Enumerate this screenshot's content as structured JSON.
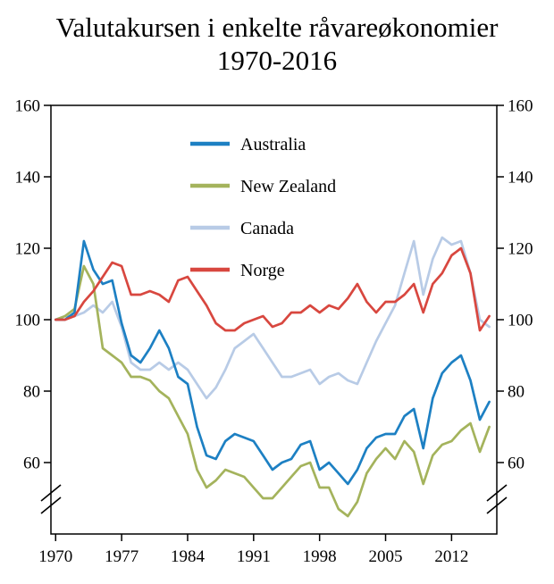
{
  "title": {
    "line1": "Valutakursen i enkelte råvareøkonomier",
    "line2": "1970-2016"
  },
  "chart_data": {
    "type": "line",
    "title": "Valutakursen i enkelte råvareøkonomier 1970-2016",
    "x": [
      1970,
      1971,
      1972,
      1973,
      1974,
      1975,
      1976,
      1977,
      1978,
      1979,
      1980,
      1981,
      1982,
      1983,
      1984,
      1985,
      1986,
      1987,
      1988,
      1989,
      1990,
      1991,
      1992,
      1993,
      1994,
      1995,
      1996,
      1997,
      1998,
      1999,
      2000,
      2001,
      2002,
      2003,
      2004,
      2005,
      2006,
      2007,
      2008,
      2009,
      2010,
      2011,
      2012,
      2013,
      2014,
      2015,
      2016
    ],
    "series": [
      {
        "name": "Australia",
        "color": "#1d80c3",
        "values": [
          100,
          100,
          102,
          122,
          114,
          110,
          111,
          99,
          90,
          88,
          92,
          97,
          92,
          84,
          82,
          70,
          62,
          61,
          66,
          68,
          67,
          66,
          62,
          58,
          60,
          61,
          65,
          66,
          58,
          60,
          57,
          54,
          58,
          64,
          67,
          68,
          68,
          73,
          75,
          64,
          78,
          85,
          88,
          90,
          83,
          72,
          77
        ]
      },
      {
        "name": "New Zealand",
        "color": "#a4b35c",
        "values": [
          100,
          101,
          103,
          115,
          110,
          92,
          90,
          88,
          84,
          84,
          83,
          80,
          78,
          73,
          68,
          58,
          53,
          55,
          58,
          57,
          56,
          53,
          50,
          50,
          53,
          56,
          59,
          60,
          53,
          53,
          47,
          45,
          49,
          57,
          61,
          64,
          61,
          66,
          63,
          54,
          62,
          65,
          66,
          69,
          71,
          63,
          70
        ]
      },
      {
        "name": "Canada",
        "color": "#b8cbe6",
        "values": [
          100,
          101,
          101,
          102,
          104,
          102,
          105,
          98,
          88,
          86,
          86,
          88,
          86,
          88,
          86,
          82,
          78,
          81,
          86,
          92,
          94,
          96,
          92,
          88,
          84,
          84,
          85,
          86,
          82,
          84,
          85,
          83,
          82,
          88,
          94,
          99,
          104,
          113,
          122,
          107,
          117,
          123,
          121,
          122,
          113,
          100,
          98
        ]
      },
      {
        "name": "Norge",
        "color": "#d8473f",
        "values": [
          100,
          100,
          101,
          105,
          108,
          112,
          116,
          115,
          107,
          107,
          108,
          107,
          105,
          111,
          112,
          108,
          104,
          99,
          97,
          97,
          99,
          100,
          101,
          98,
          99,
          102,
          102,
          104,
          102,
          104,
          103,
          106,
          110,
          105,
          102,
          105,
          105,
          107,
          110,
          102,
          110,
          113,
          118,
          120,
          113,
          97,
          101
        ]
      }
    ],
    "ylim": [
      40,
      160
    ],
    "xlim": [
      1969.5,
      2016.8
    ],
    "yticks": [
      60,
      80,
      100,
      120,
      140,
      160
    ],
    "xticks": [
      1970,
      1977,
      1984,
      1991,
      1998,
      2005,
      2012
    ],
    "grid": false,
    "legend_position": "inside-top-left",
    "axis_break_y": true
  }
}
